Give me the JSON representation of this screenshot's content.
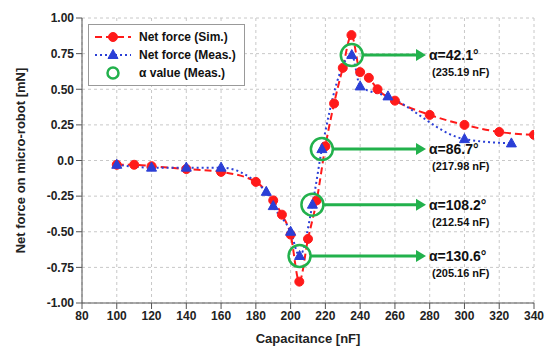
{
  "chart_data": {
    "type": "line",
    "x_label": "Capacitance [nF]",
    "y_label": "Net force on micro-robot [mN]",
    "xlim": [
      80,
      340
    ],
    "xticks": [
      80,
      100,
      120,
      140,
      160,
      180,
      200,
      220,
      240,
      260,
      280,
      300,
      320,
      340
    ],
    "ylim": [
      -1,
      1
    ],
    "yticks": [
      {
        "value": -1,
        "label": "-1.00"
      },
      {
        "value": -0.75,
        "label": "-0.75"
      },
      {
        "value": -0.5,
        "label": "-0.50"
      },
      {
        "value": -0.25,
        "label": "-0.25"
      },
      {
        "value": 0,
        "label": "0.0"
      },
      {
        "value": 0.25,
        "label": "0.25"
      },
      {
        "value": 0.5,
        "label": "0.50"
      },
      {
        "value": 0.75,
        "label": "0.75"
      },
      {
        "value": 1,
        "label": "1.00"
      }
    ],
    "grid": true,
    "legend": "upper left",
    "series": [
      {
        "name": "Net force (Sim.)",
        "type": "line",
        "color": "#ff1a1a",
        "marker": "circle",
        "line_style": "dashed",
        "x": [
          100,
          110,
          120,
          140,
          160,
          180,
          190,
          195,
          200,
          205,
          210,
          215,
          220,
          225,
          230,
          235,
          240,
          245,
          250,
          260,
          280,
          300,
          320,
          340
        ],
        "values": [
          -0.03,
          -0.03,
          -0.04,
          -0.06,
          -0.08,
          -0.15,
          -0.28,
          -0.38,
          -0.52,
          -0.85,
          -0.55,
          -0.28,
          0.1,
          0.4,
          0.65,
          0.88,
          0.62,
          0.58,
          0.5,
          0.42,
          0.32,
          0.25,
          0.2,
          0.18
        ]
      },
      {
        "name": "Net force (Meas.)",
        "type": "line",
        "color": "#2b3fd6",
        "marker": "triangle",
        "line_style": "dotted",
        "x": [
          100,
          120,
          140,
          160,
          186,
          190,
          200,
          205.16,
          212.54,
          217.98,
          235.19,
          240,
          256,
          300,
          327
        ],
        "values": [
          -0.03,
          -0.05,
          -0.05,
          -0.05,
          -0.22,
          -0.32,
          -0.5,
          -0.67,
          -0.31,
          0.08,
          0.74,
          0.52,
          0.45,
          0.15,
          0.12
        ]
      },
      {
        "name": "α value (Meas.)",
        "type": "scatter",
        "color": "#22b14c",
        "marker": "circle",
        "points": [
          {
            "x": 235.19,
            "y": 0.74,
            "text": "α=42.1°",
            "subtext": "(235.19 nF)"
          },
          {
            "x": 217.98,
            "y": 0.08,
            "text": "α=86.7°",
            "subtext": "(217.98 nF)"
          },
          {
            "x": 212.54,
            "y": -0.31,
            "text": "α=108.2°",
            "subtext": "(212.54 nF)"
          },
          {
            "x": 205.16,
            "y": -0.67,
            "text": "α=130.6°",
            "subtext": "(205.16 nF)"
          }
        ]
      }
    ]
  }
}
